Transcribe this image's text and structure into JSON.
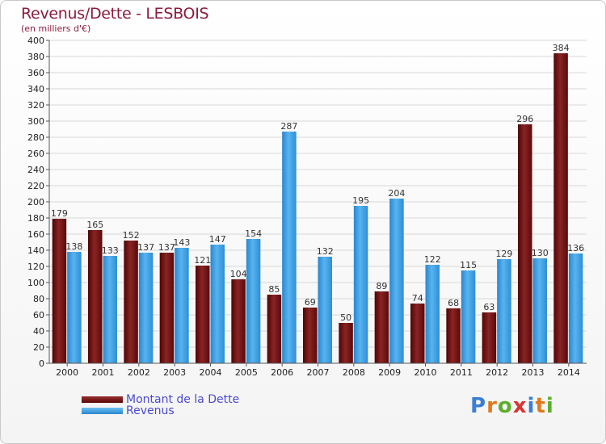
{
  "title": "Revenus/Dette - LESBOIS",
  "subtitle": "(en milliers d'€)",
  "logo": "Proxiti",
  "colors": {
    "dette": "#7a1a1a",
    "revenus": "#3a9ae0",
    "title": "#8b1c3c",
    "legend_text": "#4a4ad0"
  },
  "chart_data": {
    "type": "bar",
    "categories": [
      "2000",
      "2001",
      "2002",
      "2003",
      "2004",
      "2005",
      "2006",
      "2007",
      "2008",
      "2009",
      "2010",
      "2011",
      "2012",
      "2013",
      "2014"
    ],
    "series": [
      {
        "name": "Montant de la Dette",
        "values": [
          179,
          165,
          152,
          137,
          121,
          104,
          85,
          69,
          50,
          89,
          74,
          68,
          63,
          296,
          384
        ]
      },
      {
        "name": "Revenus",
        "values": [
          138,
          133,
          137,
          143,
          147,
          154,
          287,
          132,
          195,
          204,
          122,
          115,
          129,
          130,
          136
        ]
      }
    ],
    "ylim": [
      0,
      400
    ],
    "ytick_step": 20,
    "grid": true,
    "legend_position": "bottom-left"
  }
}
